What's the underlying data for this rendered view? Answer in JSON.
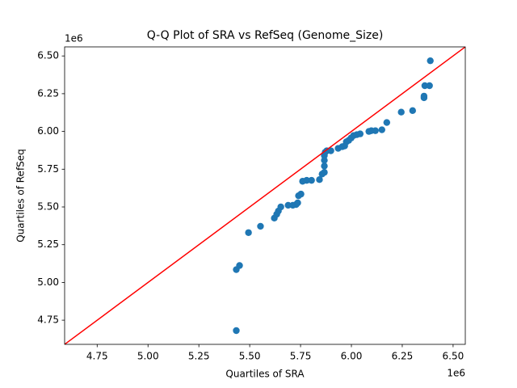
{
  "chart_data": {
    "type": "scatter",
    "title": "Q-Q Plot of SRA vs RefSeq (Genome_Size)",
    "x_label": "Quartiles of SRA",
    "y_label": "Quartiles of RefSeq",
    "x_offset": "1e6",
    "y_offset": "1e6",
    "color": "#1f77b4",
    "reference_line_color": "#ff0000",
    "xlim": [
      4590000,
      6560000
    ],
    "ylim": [
      4590000,
      6560000
    ],
    "xticks": [
      {
        "value": 4750000,
        "label": "4.75"
      },
      {
        "value": 5000000,
        "label": "5.00"
      },
      {
        "value": 5250000,
        "label": "5.25"
      },
      {
        "value": 5500000,
        "label": "5.50"
      },
      {
        "value": 5750000,
        "label": "5.75"
      },
      {
        "value": 6000000,
        "label": "6.00"
      },
      {
        "value": 6250000,
        "label": "6.25"
      },
      {
        "value": 6500000,
        "label": "6.50"
      }
    ],
    "yticks": [
      {
        "value": 4750000,
        "label": "4.75"
      },
      {
        "value": 5000000,
        "label": "5.00"
      },
      {
        "value": 5250000,
        "label": "5.25"
      },
      {
        "value": 5500000,
        "label": "5.50"
      },
      {
        "value": 5750000,
        "label": "5.75"
      },
      {
        "value": 6000000,
        "label": "6.00"
      },
      {
        "value": 6250000,
        "label": "6.25"
      },
      {
        "value": 6500000,
        "label": "6.50"
      }
    ],
    "x": [
      5434000,
      5434000,
      5450000,
      5494000,
      5553000,
      5621000,
      5633000,
      5641000,
      5653000,
      5689000,
      5712000,
      5728000,
      5736000,
      5740000,
      5752000,
      5760000,
      5780000,
      5804000,
      5843000,
      5856000,
      5867000,
      5867000,
      5867000,
      5867000,
      5871000,
      5879000,
      5899000,
      5935000,
      5955000,
      5967000,
      5975000,
      5987000,
      5999000,
      6011000,
      6027000,
      6043000,
      6086000,
      6098000,
      6118000,
      6150000,
      6174000,
      6245000,
      6301000,
      6357000,
      6357000,
      6361000,
      6384000,
      6388000
    ],
    "y": [
      4681000,
      5085000,
      5112000,
      5330000,
      5372000,
      5426000,
      5452000,
      5473000,
      5500000,
      5511000,
      5511000,
      5516000,
      5527000,
      5574000,
      5585000,
      5670000,
      5676000,
      5676000,
      5681000,
      5718000,
      5729000,
      5771000,
      5809000,
      5840000,
      5862000,
      5872000,
      5872000,
      5888000,
      5899000,
      5904000,
      5931000,
      5941000,
      5957000,
      5973000,
      5979000,
      5984000,
      6000000,
      6005000,
      6005000,
      6011000,
      6059000,
      6128000,
      6138000,
      6223000,
      6234000,
      6303000,
      6303000,
      6468000
    ]
  }
}
